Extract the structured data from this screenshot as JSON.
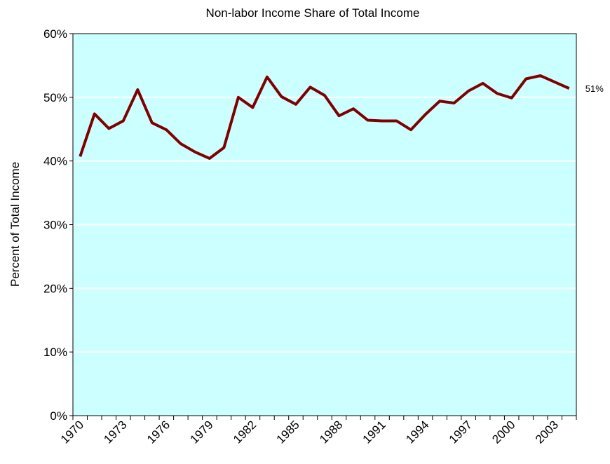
{
  "chart_data": {
    "type": "line",
    "title": "Non-labor Income Share of Total Income",
    "y_label": "Percent of Total Income",
    "categories": [
      "1970",
      null,
      null,
      "1973",
      null,
      null,
      "1976",
      null,
      null,
      "1979",
      null,
      null,
      "1982",
      null,
      null,
      "1985",
      null,
      null,
      "1988",
      null,
      null,
      "1991",
      null,
      null,
      "1994",
      null,
      null,
      "1997",
      null,
      null,
      "2000",
      null,
      null,
      "2003",
      null
    ],
    "series": [
      {
        "color": "#800000",
        "values": [
          40.7,
          47.4,
          45.1,
          46.3,
          51.2,
          46.0,
          44.9,
          42.7,
          41.4,
          40.4,
          42.1,
          50.0,
          48.4,
          53.2,
          50.1,
          48.9,
          51.6,
          50.3,
          47.1,
          48.2,
          46.4,
          46.3,
          46.3,
          44.9,
          47.3,
          49.4,
          49.1,
          51.0,
          52.2,
          50.6,
          49.9,
          52.9,
          53.4,
          52.4,
          51.4
        ],
        "value_labels": [
          null,
          null,
          null,
          null,
          null,
          null,
          null,
          null,
          null,
          null,
          null,
          null,
          null,
          null,
          null,
          null,
          null,
          null,
          null,
          null,
          null,
          null,
          null,
          null,
          null,
          null,
          null,
          null,
          null,
          null,
          null,
          null,
          null,
          null,
          "51%"
        ]
      }
    ],
    "ylim": [
      0,
      60
    ],
    "yticks": [
      {
        "value": 0,
        "label": "0%"
      },
      {
        "value": 10,
        "label": "10%"
      },
      {
        "value": 20,
        "label": "20%"
      },
      {
        "value": 30,
        "label": "30%"
      },
      {
        "value": 40,
        "label": "40%"
      },
      {
        "value": 50,
        "label": "50%"
      },
      {
        "value": 60,
        "label": "60%"
      }
    ],
    "grid": true,
    "background": "#ccffff"
  }
}
